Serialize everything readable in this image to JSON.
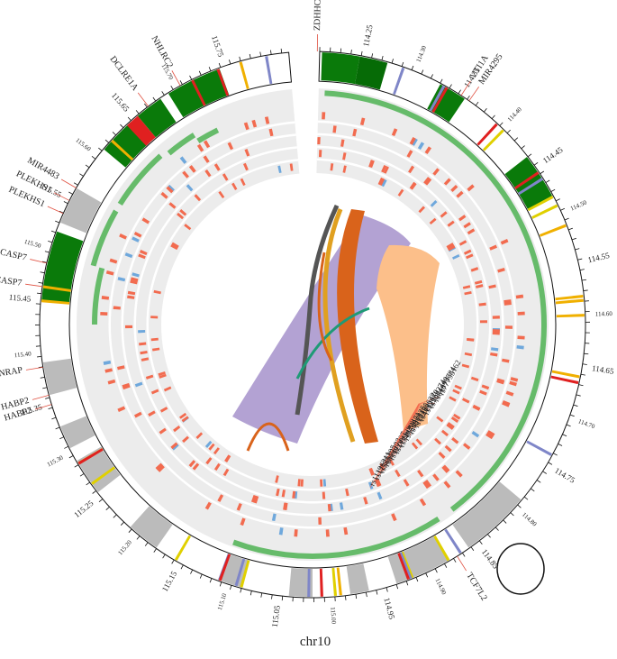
{
  "chromosome_label": "chr10",
  "tick_labels": [
    "114.25",
    "114.30",
    "114.35",
    "114.40",
    "114.45",
    "114.50",
    "114.55",
    "114.60",
    "114.65",
    "114.70",
    "114.75",
    "114.80",
    "114.85",
    "114.90",
    "114.95",
    "115.00",
    "115.05",
    "115.10",
    "115.15",
    "115.20",
    "115.25",
    "115.30",
    "115.35",
    "115.40",
    "115.45",
    "115.50",
    "115.55",
    "115.60",
    "115.65",
    "115.70",
    "115.75"
  ],
  "genes": [
    "ZDHHC6",
    "VTI1A",
    "MIR4295",
    "TCF7L2",
    "HABP2",
    "HABP2",
    "NRAP",
    "CASP7",
    "CASP7",
    "PLEKHS1",
    "PLEKHS1",
    "MIR4483",
    "DCLRE1A",
    "NHLRC2"
  ],
  "snps": [
    "rs77795162",
    "rs61873784",
    "rs7074440",
    "rs12258274",
    "rs4132670",
    "rs12266632",
    "rs7076195",
    "rs35690925",
    "rs34872471",
    "rs11196208",
    "rs12243326",
    "rs67447607",
    "rs56939003",
    "rs11196205",
    "rs11196211"
  ]
}
